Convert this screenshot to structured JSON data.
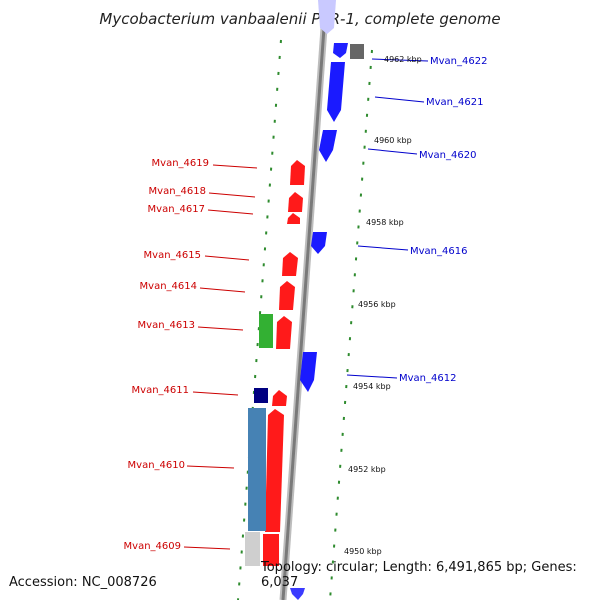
{
  "title": "Mycobacterium vanbaalenii PYR-1, complete genome",
  "footer": {
    "accession": "Accession: NC_008726",
    "topology": "Topology: circular; Length: 6,491,865 bp; Genes: 6,037"
  },
  "colors": {
    "reverse_gene": "#ff0000",
    "forward_gene": "#0000ff",
    "gene_label_reverse": "#cc0000",
    "gene_label_forward": "#0000cc",
    "tick": "#2e8b2e",
    "backbone": "#909090",
    "rna": "#2e9e2e",
    "other_feature": "#4682b4",
    "dark_feature": "#000080"
  },
  "kbp_ticks": [
    {
      "label": "4962 kbp"
    },
    {
      "label": "4960 kbp"
    },
    {
      "label": "4958 kbp"
    },
    {
      "label": "4956 kbp"
    },
    {
      "label": "4954 kbp"
    },
    {
      "label": "4952 kbp"
    },
    {
      "label": "4950 kbp"
    }
  ],
  "genes_reverse": [
    {
      "label": "Mvan_4619"
    },
    {
      "label": "Mvan_4618"
    },
    {
      "label": "Mvan_4617"
    },
    {
      "label": "Mvan_4615"
    },
    {
      "label": "Mvan_4614"
    },
    {
      "label": "Mvan_4613"
    },
    {
      "label": "Mvan_4611"
    },
    {
      "label": "Mvan_4610"
    },
    {
      "label": "Mvan_4609"
    }
  ],
  "genes_forward": [
    {
      "label": "Mvan_4622"
    },
    {
      "label": "Mvan_4621"
    },
    {
      "label": "Mvan_4620"
    },
    {
      "label": "Mvan_4616"
    },
    {
      "label": "Mvan_4612"
    }
  ]
}
